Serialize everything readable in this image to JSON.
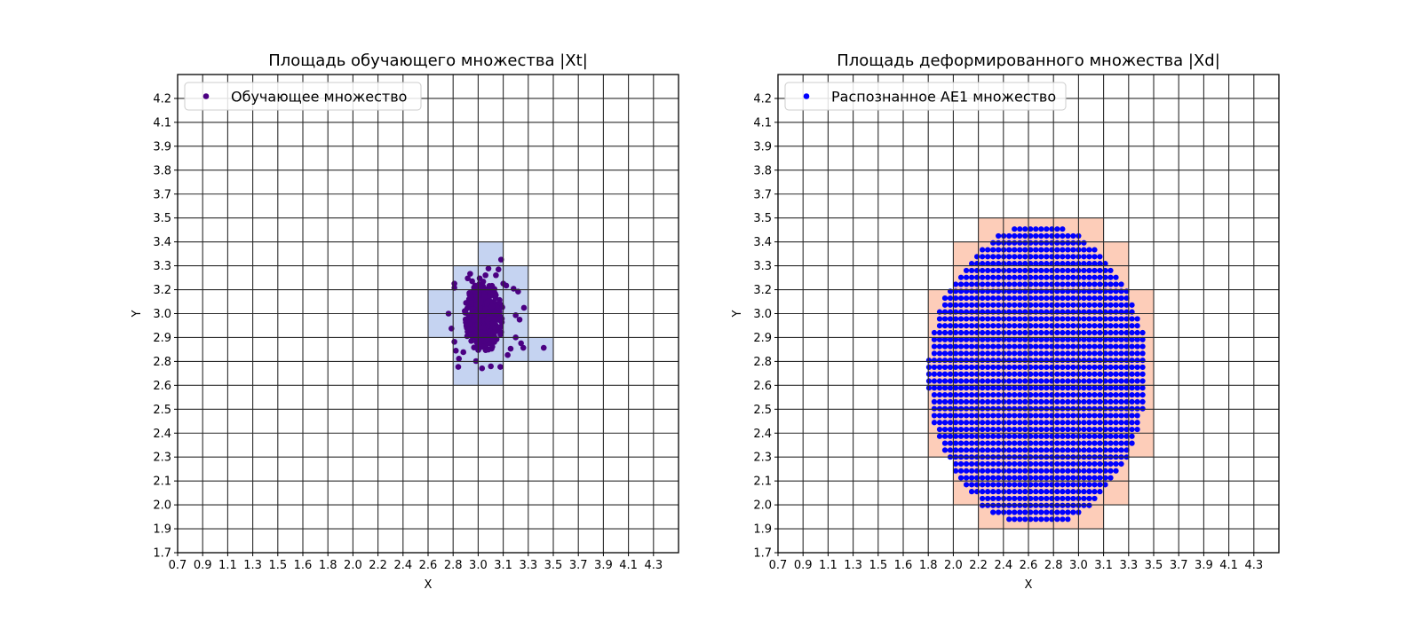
{
  "chart_data": [
    {
      "type": "scatter",
      "title": "Площадь обучающего множества |Xt|",
      "xlabel": "X",
      "ylabel": "Y",
      "xlim": [
        0.7,
        4.45
      ],
      "ylim": [
        1.7,
        4.33
      ],
      "grid": true,
      "legend_placement": "top-left",
      "xticks": [
        "0.7",
        "0.9",
        "1.1",
        "1.3",
        "1.5",
        "1.6",
        "1.8",
        "2.0",
        "2.2",
        "2.4",
        "2.6",
        "2.8",
        "3.0",
        "3.1",
        "3.3",
        "3.5",
        "3.7",
        "3.9",
        "4.1",
        "4.3"
      ],
      "yticks": [
        "1.7",
        "1.9",
        "2.0",
        "2.1",
        "2.3",
        "2.4",
        "2.5",
        "2.6",
        "2.8",
        "2.9",
        "3.0",
        "3.2",
        "3.3",
        "3.4",
        "3.5",
        "3.7",
        "3.8",
        "3.9",
        "4.1",
        "4.2"
      ],
      "cells": {
        "color": "#c5d3f1",
        "rects": [
          {
            "x": [
              "3.0",
              "3.1"
            ],
            "y": [
              "3.3",
              "3.4"
            ]
          },
          {
            "x": [
              "2.8",
              "3.3"
            ],
            "y": [
              "3.2",
              "3.3"
            ]
          },
          {
            "x": [
              "2.6",
              "3.3"
            ],
            "y": [
              "3.0",
              "3.2"
            ]
          },
          {
            "x": [
              "2.6",
              "3.3"
            ],
            "y": [
              "2.9",
              "3.0"
            ]
          },
          {
            "x": [
              "2.8",
              "3.5"
            ],
            "y": [
              "2.8",
              "2.9"
            ]
          },
          {
            "x": [
              "2.8",
              "3.1"
            ],
            "y": [
              "2.6",
              "2.8"
            ]
          }
        ]
      },
      "series": [
        {
          "name": "Обучающее множество",
          "color": "#4b0082",
          "cluster_center": [
            2.99,
            3.0
          ],
          "points": [
            [
              3.122,
              3.312
            ],
            [
              3.027,
              3.263
            ],
            [
              3.102,
              3.258
            ],
            [
              2.89,
              3.234
            ],
            [
              3.083,
              3.226
            ],
            [
              2.772,
              3.18
            ],
            [
              2.772,
              3.157
            ],
            [
              3.215,
              3.152
            ],
            [
              3.249,
              3.136
            ],
            [
              3.293,
              3.047
            ],
            [
              2.728,
              3.015
            ],
            [
              3.231,
              3.006
            ],
            [
              3.26,
              2.982
            ],
            [
              2.75,
              2.933
            ],
            [
              3.231,
              2.884
            ],
            [
              2.772,
              2.86
            ],
            [
              3.271,
              2.852
            ],
            [
              3.288,
              2.827
            ],
            [
              3.441,
              2.827
            ],
            [
              3.193,
              2.822
            ],
            [
              2.783,
              2.811
            ],
            [
              3.171,
              2.787
            ],
            [
              2.806,
              2.767
            ],
            [
              2.934,
              2.754
            ],
            [
              2.801,
              2.722
            ],
            [
              2.979,
              2.714
            ],
            [
              3.045,
              2.725
            ],
            [
              3.116,
              2.722
            ],
            [
              2.839,
              2.803
            ],
            [
              2.872,
              3.209
            ],
            [
              3.138,
              3.18
            ],
            [
              3.16,
              3.169
            ],
            [
              2.905,
              3.193
            ],
            [
              3.005,
              3.226
            ],
            [
              2.961,
              3.209
            ]
          ]
        }
      ]
    },
    {
      "type": "scatter",
      "title": "Площадь деформированного множества |Xd|",
      "xlabel": "X",
      "ylabel": "Y",
      "xlim": [
        0.7,
        4.45
      ],
      "ylim": [
        1.7,
        4.33
      ],
      "grid": true,
      "legend_placement": "top-left",
      "xticks": [
        "0.7",
        "0.9",
        "1.1",
        "1.3",
        "1.5",
        "1.6",
        "1.8",
        "2.0",
        "2.2",
        "2.4",
        "2.6",
        "2.8",
        "3.0",
        "3.1",
        "3.3",
        "3.5",
        "3.7",
        "3.9",
        "4.1",
        "4.3"
      ],
      "yticks": [
        "1.7",
        "1.9",
        "2.0",
        "2.1",
        "2.3",
        "2.4",
        "2.5",
        "2.6",
        "2.8",
        "2.9",
        "3.0",
        "3.2",
        "3.3",
        "3.4",
        "3.5",
        "3.7",
        "3.8",
        "3.9",
        "4.1",
        "4.2"
      ],
      "cells": {
        "color": "#fdcdb9",
        "rects": [
          {
            "x": [
              "2.2",
              "3.1"
            ],
            "y": [
              "3.4",
              "3.5"
            ]
          },
          {
            "x": [
              "2.0",
              "3.3"
            ],
            "y": [
              "3.2",
              "3.4"
            ]
          },
          {
            "x": [
              "1.8",
              "3.5"
            ],
            "y": [
              "2.3",
              "3.2"
            ]
          },
          {
            "x": [
              "2.0",
              "3.3"
            ],
            "y": [
              "2.0",
              "2.3"
            ]
          },
          {
            "x": [
              "2.2",
              "3.1"
            ],
            "y": [
              "1.9",
              "2.0"
            ]
          }
        ]
      },
      "series": [
        {
          "name": "Распознанное AE1 множество",
          "color": "#0000ff",
          "x_step": 0.04,
          "grid_rows": [
            {
              "y": 3.48,
              "x_min": 2.47,
              "x_max": 2.83
            },
            {
              "y": 3.442,
              "x_min": 2.35,
              "x_max": 2.95
            },
            {
              "y": 3.404,
              "x_min": 2.31,
              "x_max": 2.99
            },
            {
              "y": 3.366,
              "x_min": 2.23,
              "x_max": 3.07
            },
            {
              "y": 3.328,
              "x_min": 2.19,
              "x_max": 3.11
            },
            {
              "y": 3.29,
              "x_min": 2.15,
              "x_max": 3.15
            },
            {
              "y": 3.252,
              "x_min": 2.11,
              "x_max": 3.19
            },
            {
              "y": 3.214,
              "x_min": 2.07,
              "x_max": 3.23
            },
            {
              "y": 3.176,
              "x_min": 2.03,
              "x_max": 3.27
            },
            {
              "y": 3.138,
              "x_min": 1.99,
              "x_max": 3.31
            },
            {
              "y": 3.1,
              "x_min": 1.95,
              "x_max": 3.31
            },
            {
              "y": 3.062,
              "x_min": 1.95,
              "x_max": 3.35
            },
            {
              "y": 3.024,
              "x_min": 1.91,
              "x_max": 3.35
            },
            {
              "y": 2.986,
              "x_min": 1.91,
              "x_max": 3.39
            },
            {
              "y": 2.948,
              "x_min": 1.91,
              "x_max": 3.39
            },
            {
              "y": 2.91,
              "x_min": 1.87,
              "x_max": 3.43
            },
            {
              "y": 2.872,
              "x_min": 1.87,
              "x_max": 3.43
            },
            {
              "y": 2.834,
              "x_min": 1.87,
              "x_max": 3.43
            },
            {
              "y": 2.796,
              "x_min": 1.87,
              "x_max": 3.43
            },
            {
              "y": 2.758,
              "x_min": 1.83,
              "x_max": 3.43
            },
            {
              "y": 2.72,
              "x_min": 1.83,
              "x_max": 3.43
            },
            {
              "y": 2.682,
              "x_min": 1.83,
              "x_max": 3.43
            },
            {
              "y": 2.644,
              "x_min": 1.83,
              "x_max": 3.43
            },
            {
              "y": 2.606,
              "x_min": 1.83,
              "x_max": 3.43
            },
            {
              "y": 2.568,
              "x_min": 1.87,
              "x_max": 3.43
            },
            {
              "y": 2.53,
              "x_min": 1.87,
              "x_max": 3.43
            },
            {
              "y": 2.492,
              "x_min": 1.87,
              "x_max": 3.43
            },
            {
              "y": 2.454,
              "x_min": 1.87,
              "x_max": 3.39
            },
            {
              "y": 2.416,
              "x_min": 1.87,
              "x_max": 3.39
            },
            {
              "y": 2.378,
              "x_min": 1.91,
              "x_max": 3.39
            },
            {
              "y": 2.34,
              "x_min": 1.91,
              "x_max": 3.35
            },
            {
              "y": 2.302,
              "x_min": 1.95,
              "x_max": 3.35
            },
            {
              "y": 2.264,
              "x_min": 1.95,
              "x_max": 3.31
            },
            {
              "y": 2.226,
              "x_min": 1.99,
              "x_max": 3.31
            },
            {
              "y": 2.188,
              "x_min": 2.03,
              "x_max": 3.27
            },
            {
              "y": 2.15,
              "x_min": 2.03,
              "x_max": 3.23
            },
            {
              "y": 2.112,
              "x_min": 2.07,
              "x_max": 3.19
            },
            {
              "y": 2.074,
              "x_min": 2.11,
              "x_max": 3.15
            },
            {
              "y": 2.036,
              "x_min": 2.15,
              "x_max": 3.11
            },
            {
              "y": 1.998,
              "x_min": 2.23,
              "x_max": 3.07
            },
            {
              "y": 1.96,
              "x_min": 2.23,
              "x_max": 3.03
            },
            {
              "y": 1.922,
              "x_min": 2.31,
              "x_max": 2.95
            },
            {
              "y": 1.884,
              "x_min": 2.43,
              "x_max": 2.87
            }
          ]
        }
      ]
    }
  ]
}
